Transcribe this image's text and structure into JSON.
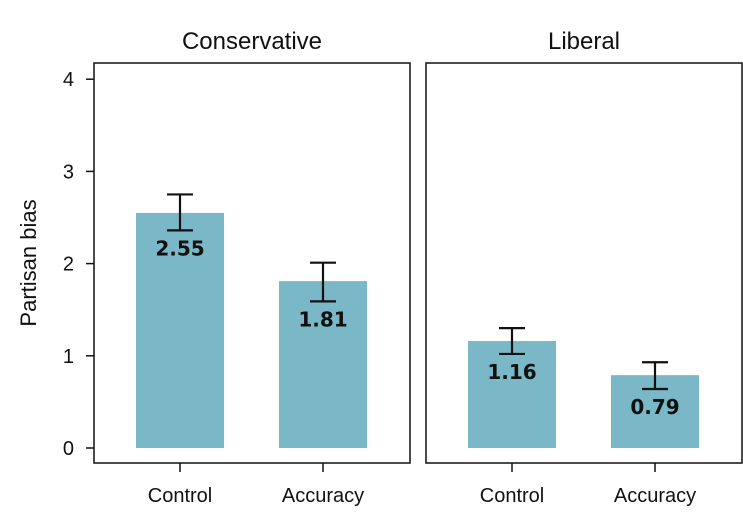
{
  "chart_data": {
    "type": "bar",
    "ylabel": "Partisan bias",
    "ylim": [
      0,
      4
    ],
    "yticks": [
      0,
      1,
      2,
      3,
      4
    ],
    "bar_color": "#7ab7c7",
    "panels": [
      {
        "title": "Conservative",
        "categories": [
          "Control",
          "Accuracy"
        ],
        "values": [
          2.55,
          1.81
        ],
        "value_labels": [
          "2.55",
          "1.81"
        ],
        "error": [
          [
            2.36,
            2.75
          ],
          [
            1.59,
            2.01
          ]
        ]
      },
      {
        "title": "Liberal",
        "categories": [
          "Control",
          "Accuracy"
        ],
        "values": [
          1.16,
          0.79
        ],
        "value_labels": [
          "1.16",
          "0.79"
        ],
        "error": [
          [
            1.02,
            1.3
          ],
          [
            0.64,
            0.93
          ]
        ]
      }
    ]
  }
}
